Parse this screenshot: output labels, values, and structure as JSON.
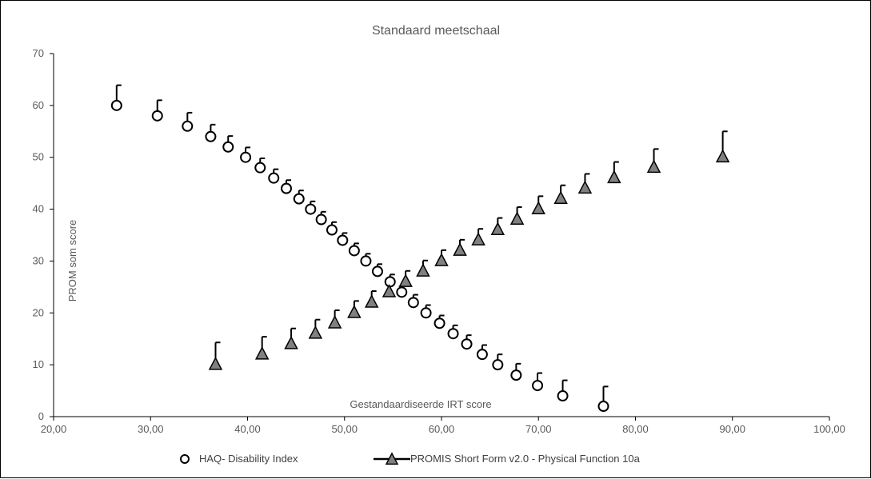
{
  "chart_data": {
    "type": "scatter",
    "title": "Standaard meetschaal",
    "xlabel": "Gestandaardiseerde IRT score",
    "ylabel": "PROM som score",
    "xlim": [
      20,
      100
    ],
    "ylim": [
      0,
      70
    ],
    "x_ticks": [
      "20,00",
      "30,00",
      "40,00",
      "50,00",
      "60,00",
      "70,00",
      "80,00",
      "90,00",
      "100,00"
    ],
    "y_ticks": [
      "0",
      "10",
      "20",
      "30",
      "40",
      "50",
      "60",
      "70"
    ],
    "grid": false,
    "legend_position": "bottom",
    "series": [
      {
        "name": "HAQ- Disability Index",
        "marker": "circle",
        "fill": "#ffffff",
        "x": [
          26.5,
          30.7,
          33.8,
          36.2,
          38.0,
          39.8,
          41.3,
          42.7,
          44.0,
          45.3,
          46.5,
          47.6,
          48.7,
          49.8,
          51.0,
          52.2,
          53.4,
          54.7,
          55.9,
          57.1,
          58.4,
          59.8,
          61.2,
          62.6,
          64.2,
          65.8,
          67.7,
          69.9,
          72.5,
          76.7
        ],
        "y": [
          60,
          58,
          56,
          54,
          52,
          50,
          48,
          46,
          44,
          42,
          40,
          38,
          36,
          34,
          32,
          30,
          28,
          26,
          24,
          22,
          20,
          18,
          16,
          14,
          12,
          10,
          8,
          6,
          4,
          2
        ],
        "error_plus": [
          3.9,
          3.0,
          2.6,
          2.3,
          2.1,
          1.9,
          1.8,
          1.7,
          1.6,
          1.6,
          1.5,
          1.5,
          1.5,
          1.4,
          1.4,
          1.4,
          1.4,
          1.4,
          1.4,
          1.5,
          1.5,
          1.5,
          1.6,
          1.7,
          1.8,
          2.0,
          2.2,
          2.4,
          3.0,
          3.8
        ]
      },
      {
        "name": "PROMIS Short Form v2.0 - Physical Function 10a",
        "marker": "triangle",
        "fill": "#808080",
        "x": [
          36.7,
          41.5,
          44.5,
          47.0,
          49.0,
          51.0,
          52.8,
          54.6,
          56.3,
          58.1,
          60.0,
          61.9,
          63.8,
          65.8,
          67.8,
          70.0,
          72.3,
          74.8,
          77.8,
          81.9,
          89.0
        ],
        "y": [
          10,
          12,
          14,
          16,
          18,
          20,
          22,
          24,
          26,
          28,
          30,
          32,
          34,
          36,
          38,
          40,
          42,
          44,
          46,
          48,
          50
        ],
        "error_plus": [
          4.3,
          3.4,
          3.0,
          2.7,
          2.5,
          2.3,
          2.2,
          2.1,
          2.1,
          2.1,
          2.1,
          2.1,
          2.2,
          2.3,
          2.4,
          2.5,
          2.6,
          2.8,
          3.1,
          3.6,
          5.0
        ]
      }
    ]
  },
  "colors": {
    "axis": "#000000",
    "text": "#595959",
    "marker_stroke": "#000000"
  }
}
